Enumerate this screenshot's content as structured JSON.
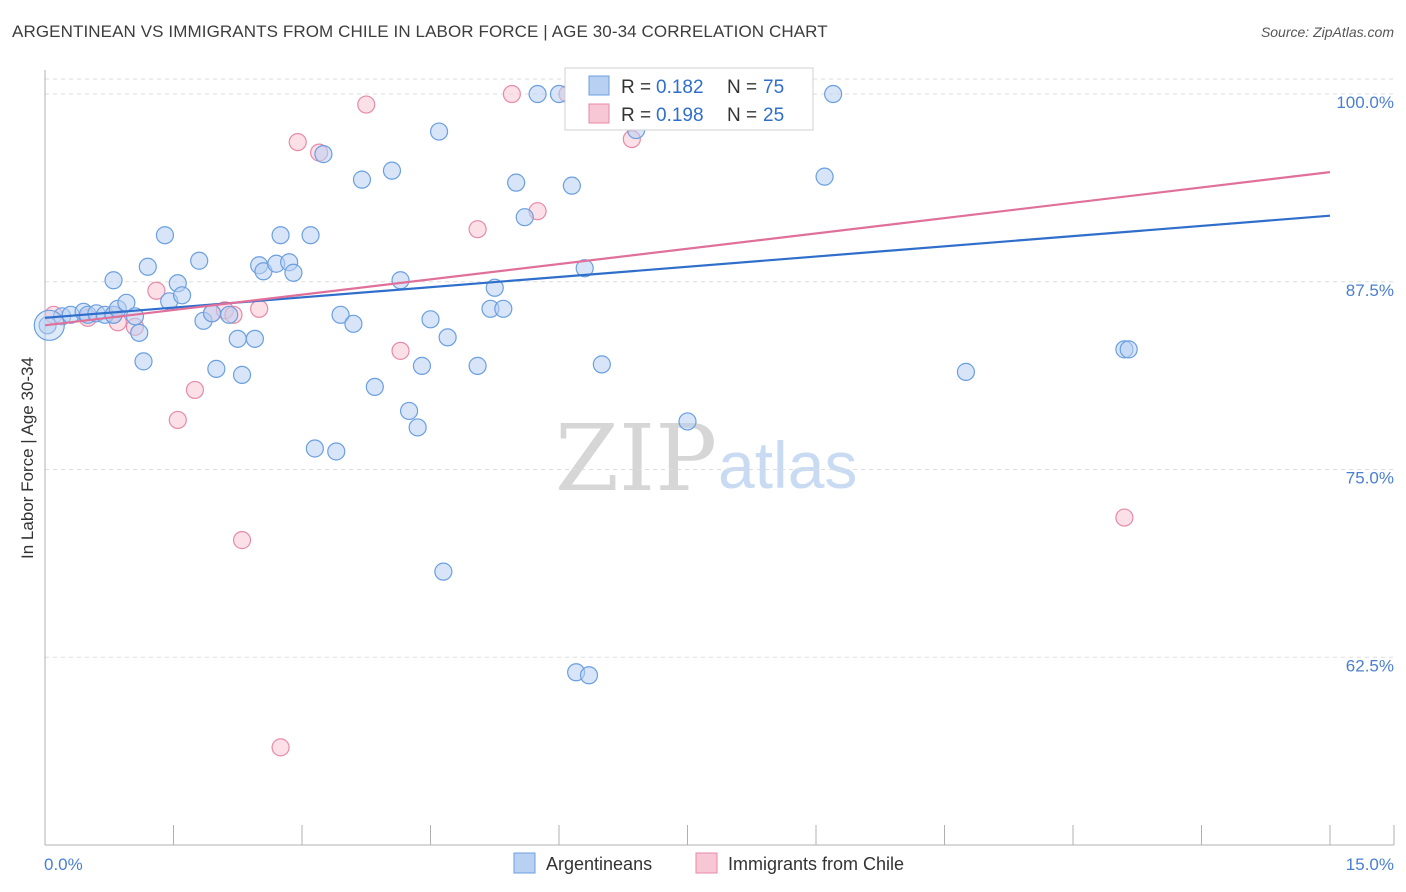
{
  "title": "ARGENTINEAN VS IMMIGRANTS FROM CHILE IN LABOR FORCE | AGE 30-34 CORRELATION CHART",
  "source": "Source: ZipAtlas.com",
  "watermark": {
    "zip": "ZIP",
    "atlas": "atlas"
  },
  "colors": {
    "blue": "#6a9fe0",
    "blue_fill": "#b8d0f2",
    "blue_line": "#2f6fcb",
    "pink": "#e88aa8",
    "pink_fill": "#f8c7d6",
    "pink_line": "#e0709a",
    "axis_text": "#4a7fd0",
    "grid": "#dddddd"
  },
  "legend_top": {
    "rows": [
      {
        "r_label": "R =",
        "r_value": "0.182",
        "n_label": "N =",
        "n_value": "75",
        "series": "blue"
      },
      {
        "r_label": "R =",
        "r_value": "0.198",
        "n_label": "N =",
        "n_value": "25",
        "series": "pink"
      }
    ]
  },
  "legend_bottom": [
    "Argentineans",
    "Immigrants from Chile"
  ],
  "chart_data": {
    "type": "scatter",
    "title": "ARGENTINEAN VS IMMIGRANTS FROM CHILE IN LABOR FORCE | AGE 30-34 CORRELATION CHART",
    "xlabel": "",
    "ylabel": "In Labor Force | Age 30-34",
    "xlim": [
      0,
      15
    ],
    "ylim": [
      50,
      101.6
    ],
    "x_tick_labels": [
      "0.0%",
      "15.0%"
    ],
    "y_ticks": [
      62.5,
      75.0,
      87.5,
      100.0
    ],
    "y_tick_labels": [
      "62.5%",
      "75.0%",
      "87.5%",
      "100.0%"
    ],
    "grid": true,
    "series": [
      {
        "name": "Argentineans",
        "color": "blue",
        "trend": {
          "x": [
            0,
            15
          ],
          "y": [
            85.1,
            91.9
          ]
        },
        "points": [
          [
            0.03,
            84.6
          ],
          [
            0.2,
            85.2
          ],
          [
            0.3,
            85.3
          ],
          [
            0.45,
            85.5
          ],
          [
            0.5,
            85.3
          ],
          [
            0.6,
            85.4
          ],
          [
            0.7,
            85.3
          ],
          [
            0.8,
            85.3
          ],
          [
            0.85,
            85.7
          ],
          [
            0.8,
            87.6
          ],
          [
            0.95,
            86.1
          ],
          [
            1.05,
            85.2
          ],
          [
            1.1,
            84.1
          ],
          [
            1.15,
            82.2
          ],
          [
            1.2,
            88.5
          ],
          [
            1.4,
            90.6
          ],
          [
            1.45,
            86.2
          ],
          [
            1.55,
            87.4
          ],
          [
            1.6,
            86.6
          ],
          [
            1.8,
            88.9
          ],
          [
            1.85,
            84.9
          ],
          [
            1.95,
            85.4
          ],
          [
            2.0,
            81.7
          ],
          [
            2.15,
            85.3
          ],
          [
            2.25,
            83.7
          ],
          [
            2.3,
            81.3
          ],
          [
            2.45,
            83.7
          ],
          [
            2.5,
            88.6
          ],
          [
            2.55,
            88.2
          ],
          [
            2.7,
            88.7
          ],
          [
            2.75,
            90.6
          ],
          [
            2.85,
            88.8
          ],
          [
            2.9,
            88.1
          ],
          [
            3.1,
            90.6
          ],
          [
            3.15,
            76.4
          ],
          [
            3.25,
            96.0
          ],
          [
            3.4,
            76.2
          ],
          [
            3.45,
            85.3
          ],
          [
            3.6,
            84.7
          ],
          [
            3.7,
            94.3
          ],
          [
            3.85,
            80.5
          ],
          [
            4.05,
            94.9
          ],
          [
            4.15,
            87.6
          ],
          [
            4.25,
            78.9
          ],
          [
            4.35,
            77.8
          ],
          [
            4.4,
            81.9
          ],
          [
            4.5,
            85.0
          ],
          [
            4.6,
            97.5
          ],
          [
            4.7,
            83.8
          ],
          [
            4.65,
            68.2
          ],
          [
            5.05,
            81.9
          ],
          [
            5.2,
            85.7
          ],
          [
            5.35,
            85.7
          ],
          [
            5.25,
            87.1
          ],
          [
            5.5,
            94.1
          ],
          [
            5.6,
            91.8
          ],
          [
            5.75,
            100.0
          ],
          [
            6.15,
            93.9
          ],
          [
            6.2,
            61.5
          ],
          [
            6.3,
            88.4
          ],
          [
            6.35,
            61.3
          ],
          [
            6.5,
            82.0
          ],
          [
            6.85,
            100.0
          ],
          [
            6.9,
            97.6
          ],
          [
            6.95,
            100.0
          ],
          [
            7.1,
            99.9
          ],
          [
            7.5,
            78.2
          ],
          [
            8.85,
            100.0
          ],
          [
            9.1,
            94.5
          ],
          [
            9.2,
            100.0
          ],
          [
            10.75,
            81.5
          ],
          [
            12.6,
            83.0
          ],
          [
            12.65,
            83.0
          ],
          [
            7.05,
            100.0
          ],
          [
            6.0,
            100.0
          ]
        ]
      },
      {
        "name": "Immigrants from Chile",
        "color": "pink",
        "trend": {
          "x": [
            0,
            15
          ],
          "y": [
            84.6,
            94.8
          ]
        },
        "points": [
          [
            0.1,
            85.3
          ],
          [
            0.5,
            85.1
          ],
          [
            0.8,
            85.3
          ],
          [
            0.85,
            84.8
          ],
          [
            1.05,
            84.5
          ],
          [
            1.3,
            86.9
          ],
          [
            1.55,
            78.3
          ],
          [
            1.75,
            80.3
          ],
          [
            1.95,
            85.4
          ],
          [
            2.1,
            85.6
          ],
          [
            2.3,
            70.3
          ],
          [
            2.5,
            85.7
          ],
          [
            2.75,
            56.5
          ],
          [
            2.95,
            96.8
          ],
          [
            3.2,
            96.1
          ],
          [
            3.75,
            99.3
          ],
          [
            4.15,
            82.9
          ],
          [
            5.05,
            91.0
          ],
          [
            5.45,
            100.0
          ],
          [
            5.75,
            92.2
          ],
          [
            6.1,
            100.0
          ],
          [
            6.85,
            97.0
          ],
          [
            7.4,
            100.0
          ],
          [
            12.6,
            71.8
          ],
          [
            2.2,
            85.3
          ]
        ]
      }
    ]
  }
}
